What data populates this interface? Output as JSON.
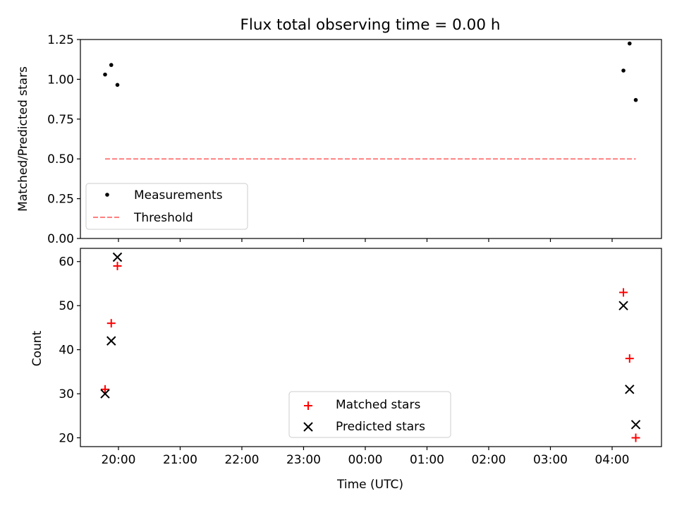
{
  "chart_data": [
    {
      "type": "scatter",
      "title": "Flux total observing time = 0.00 h",
      "xlabel": "",
      "ylabel": "Matched/Predicted stars",
      "xlim": [
        "19:23",
        "04:48"
      ],
      "ylim": [
        0,
        1.25
      ],
      "yticks": [
        "0.00",
        "0.25",
        "0.50",
        "0.75",
        "1.00",
        "1.25"
      ],
      "grid": false,
      "legend_position": "lower-left",
      "series": [
        {
          "name": "Measurements",
          "style": "dot",
          "color": "#000000",
          "points": [
            {
              "x": "19:47",
              "y": 1.03
            },
            {
              "x": "19:53",
              "y": 1.09
            },
            {
              "x": "19:59",
              "y": 0.965
            },
            {
              "x": "04:11",
              "y": 1.055
            },
            {
              "x": "04:17",
              "y": 1.225
            },
            {
              "x": "04:23",
              "y": 0.87
            }
          ]
        },
        {
          "name": "Threshold",
          "style": "dashed-line",
          "color": "#ff7f7f",
          "points": [
            {
              "x": "19:47",
              "y": 0.5
            },
            {
              "x": "04:23",
              "y": 0.5
            }
          ]
        }
      ]
    },
    {
      "type": "scatter",
      "title": "",
      "xlabel": "Time (UTC)",
      "ylabel": "Count",
      "xlim": [
        "19:23",
        "04:48"
      ],
      "ylim": [
        18,
        63
      ],
      "yticks": [
        "20",
        "30",
        "40",
        "50",
        "60"
      ],
      "xticks": [
        "20:00",
        "21:00",
        "22:00",
        "23:00",
        "00:00",
        "01:00",
        "02:00",
        "03:00",
        "04:00"
      ],
      "grid": false,
      "legend_position": "lower-center",
      "series": [
        {
          "name": "Matched stars",
          "marker": "plus",
          "color": "#ff0000",
          "points": [
            {
              "x": "19:47",
              "y": 31
            },
            {
              "x": "19:53",
              "y": 46
            },
            {
              "x": "19:59",
              "y": 59
            },
            {
              "x": "04:11",
              "y": 53
            },
            {
              "x": "04:17",
              "y": 38
            },
            {
              "x": "04:23",
              "y": 20
            }
          ]
        },
        {
          "name": "Predicted stars",
          "marker": "x",
          "color": "#000000",
          "points": [
            {
              "x": "19:47",
              "y": 30
            },
            {
              "x": "19:53",
              "y": 42
            },
            {
              "x": "19:59",
              "y": 61
            },
            {
              "x": "04:11",
              "y": 50
            },
            {
              "x": "04:17",
              "y": 31
            },
            {
              "x": "04:23",
              "y": 23
            }
          ]
        }
      ]
    }
  ]
}
